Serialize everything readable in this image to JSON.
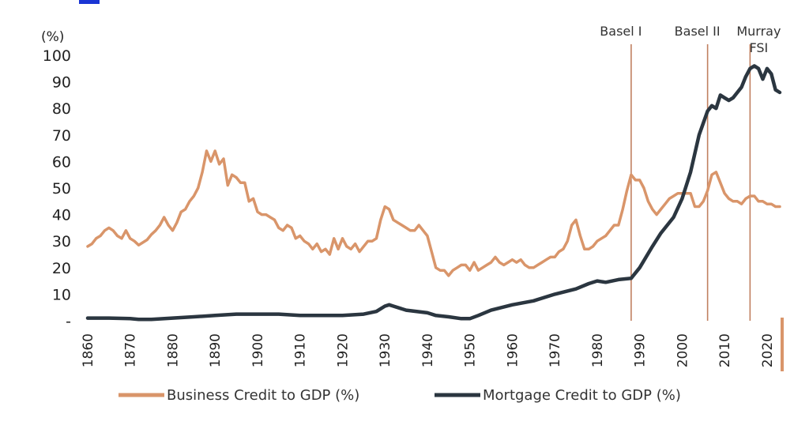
{
  "chart_data": {
    "type": "line",
    "title": "",
    "ylabel_unit": "(%)",
    "xlabel": "",
    "xlim": [
      1860,
      2023
    ],
    "ylim": [
      0,
      100
    ],
    "y_ticks": [
      {
        "value": 0,
        "label": "-"
      },
      {
        "value": 10,
        "label": "10"
      },
      {
        "value": 20,
        "label": "20"
      },
      {
        "value": 30,
        "label": "30"
      },
      {
        "value": 40,
        "label": "40"
      },
      {
        "value": 50,
        "label": "50"
      },
      {
        "value": 60,
        "label": "60"
      },
      {
        "value": 70,
        "label": "70"
      },
      {
        "value": 80,
        "label": "80"
      },
      {
        "value": 90,
        "label": "90"
      },
      {
        "value": 100,
        "label": "100"
      }
    ],
    "x_ticks": [
      {
        "value": 1860,
        "label": "1860"
      },
      {
        "value": 1870,
        "label": "1870"
      },
      {
        "value": 1880,
        "label": "1880"
      },
      {
        "value": 1890,
        "label": "1890"
      },
      {
        "value": 1900,
        "label": "1900"
      },
      {
        "value": 1910,
        "label": "1910"
      },
      {
        "value": 1920,
        "label": "1920"
      },
      {
        "value": 1930,
        "label": "1930"
      },
      {
        "value": 1940,
        "label": "1940"
      },
      {
        "value": 1950,
        "label": "1950"
      },
      {
        "value": 1960,
        "label": "1960"
      },
      {
        "value": 1970,
        "label": "1970"
      },
      {
        "value": 1980,
        "label": "1980"
      },
      {
        "value": 1990,
        "label": "1990"
      },
      {
        "value": 2000,
        "label": "2000"
      },
      {
        "value": 2010,
        "label": "2010"
      },
      {
        "value": 2020,
        "label": "2020"
      }
    ],
    "annotations": [
      {
        "name": "basel-1",
        "lines": [
          "Basel I"
        ],
        "x": 1988
      },
      {
        "name": "basel-2",
        "lines": [
          "Basel II"
        ],
        "x": 2006
      },
      {
        "name": "murray-fsi",
        "lines": [
          "Murray",
          "FSI"
        ],
        "x": 2016
      }
    ],
    "series": [
      {
        "name": "Business Credit to GDP (%)",
        "color": "#D9956A",
        "points": [
          [
            1860,
            28
          ],
          [
            1861,
            29
          ],
          [
            1862,
            31
          ],
          [
            1863,
            32
          ],
          [
            1864,
            34
          ],
          [
            1865,
            35
          ],
          [
            1866,
            34
          ],
          [
            1867,
            32
          ],
          [
            1868,
            31
          ],
          [
            1869,
            34
          ],
          [
            1870,
            31
          ],
          [
            1871,
            30
          ],
          [
            1872,
            28.5
          ],
          [
            1873,
            29.5
          ],
          [
            1874,
            30.5
          ],
          [
            1875,
            32.5
          ],
          [
            1876,
            34
          ],
          [
            1877,
            36
          ],
          [
            1878,
            39
          ],
          [
            1879,
            36
          ],
          [
            1880,
            34
          ],
          [
            1881,
            37
          ],
          [
            1882,
            41
          ],
          [
            1883,
            42
          ],
          [
            1884,
            45
          ],
          [
            1885,
            47
          ],
          [
            1886,
            50
          ],
          [
            1887,
            56
          ],
          [
            1888,
            64
          ],
          [
            1889,
            60
          ],
          [
            1890,
            64
          ],
          [
            1891,
            59
          ],
          [
            1892,
            61
          ],
          [
            1893,
            51
          ],
          [
            1894,
            55
          ],
          [
            1895,
            54
          ],
          [
            1896,
            52
          ],
          [
            1897,
            52
          ],
          [
            1898,
            45
          ],
          [
            1899,
            46
          ],
          [
            1900,
            41
          ],
          [
            1901,
            40
          ],
          [
            1902,
            40
          ],
          [
            1903,
            39
          ],
          [
            1904,
            38
          ],
          [
            1905,
            35
          ],
          [
            1906,
            34
          ],
          [
            1907,
            36
          ],
          [
            1908,
            35
          ],
          [
            1909,
            31
          ],
          [
            1910,
            32
          ],
          [
            1911,
            30
          ],
          [
            1912,
            29
          ],
          [
            1913,
            27
          ],
          [
            1914,
            29
          ],
          [
            1915,
            26
          ],
          [
            1916,
            27
          ],
          [
            1917,
            25
          ],
          [
            1918,
            31
          ],
          [
            1919,
            27
          ],
          [
            1920,
            31
          ],
          [
            1921,
            28
          ],
          [
            1922,
            27
          ],
          [
            1923,
            29
          ],
          [
            1924,
            26
          ],
          [
            1925,
            28
          ],
          [
            1926,
            30
          ],
          [
            1927,
            30
          ],
          [
            1928,
            31
          ],
          [
            1929,
            38
          ],
          [
            1930,
            43
          ],
          [
            1931,
            42
          ],
          [
            1932,
            38
          ],
          [
            1933,
            37
          ],
          [
            1934,
            36
          ],
          [
            1935,
            35
          ],
          [
            1936,
            34
          ],
          [
            1937,
            34
          ],
          [
            1938,
            36
          ],
          [
            1939,
            34
          ],
          [
            1940,
            32
          ],
          [
            1941,
            26
          ],
          [
            1942,
            20
          ],
          [
            1943,
            19
          ],
          [
            1944,
            19
          ],
          [
            1945,
            17
          ],
          [
            1946,
            19
          ],
          [
            1947,
            20
          ],
          [
            1948,
            21
          ],
          [
            1949,
            21
          ],
          [
            1950,
            19
          ],
          [
            1951,
            22
          ],
          [
            1952,
            19
          ],
          [
            1953,
            20
          ],
          [
            1954,
            21
          ],
          [
            1955,
            22
          ],
          [
            1956,
            24
          ],
          [
            1957,
            22
          ],
          [
            1958,
            21
          ],
          [
            1959,
            22
          ],
          [
            1960,
            23
          ],
          [
            1961,
            22
          ],
          [
            1962,
            23
          ],
          [
            1963,
            21
          ],
          [
            1964,
            20
          ],
          [
            1965,
            20
          ],
          [
            1966,
            21
          ],
          [
            1967,
            22
          ],
          [
            1968,
            23
          ],
          [
            1969,
            24
          ],
          [
            1970,
            24
          ],
          [
            1971,
            26
          ],
          [
            1972,
            27
          ],
          [
            1973,
            30
          ],
          [
            1974,
            36
          ],
          [
            1975,
            38
          ],
          [
            1976,
            32
          ],
          [
            1977,
            27
          ],
          [
            1978,
            27
          ],
          [
            1979,
            28
          ],
          [
            1980,
            30
          ],
          [
            1981,
            31
          ],
          [
            1982,
            32
          ],
          [
            1983,
            34
          ],
          [
            1984,
            36
          ],
          [
            1985,
            36
          ],
          [
            1986,
            42
          ],
          [
            1987,
            49
          ],
          [
            1988,
            55
          ],
          [
            1989,
            53
          ],
          [
            1990,
            53
          ],
          [
            1991,
            50
          ],
          [
            1992,
            45
          ],
          [
            1993,
            42
          ],
          [
            1994,
            40
          ],
          [
            1995,
            42
          ],
          [
            1996,
            44
          ],
          [
            1997,
            46
          ],
          [
            1998,
            47
          ],
          [
            1999,
            48
          ],
          [
            2000,
            48
          ],
          [
            2001,
            48
          ],
          [
            2002,
            48
          ],
          [
            2003,
            43
          ],
          [
            2004,
            43
          ],
          [
            2005,
            45
          ],
          [
            2006,
            49
          ],
          [
            2007,
            55
          ],
          [
            2008,
            56
          ],
          [
            2009,
            52
          ],
          [
            2010,
            48
          ],
          [
            2011,
            46
          ],
          [
            2012,
            45
          ],
          [
            2013,
            45
          ],
          [
            2014,
            44
          ],
          [
            2015,
            46
          ],
          [
            2016,
            47
          ],
          [
            2017,
            47
          ],
          [
            2018,
            45
          ],
          [
            2019,
            45
          ],
          [
            2020,
            44
          ],
          [
            2021,
            44
          ],
          [
            2022,
            43
          ],
          [
            2023,
            43
          ]
        ]
      },
      {
        "name": "Mortgage Credit to GDP (%)",
        "color": "#2B3640",
        "points": [
          [
            1860,
            1
          ],
          [
            1865,
            1
          ],
          [
            1870,
            0.8
          ],
          [
            1872,
            0.5
          ],
          [
            1875,
            0.5
          ],
          [
            1880,
            1
          ],
          [
            1885,
            1.5
          ],
          [
            1890,
            2
          ],
          [
            1895,
            2.5
          ],
          [
            1900,
            2.5
          ],
          [
            1905,
            2.5
          ],
          [
            1910,
            2
          ],
          [
            1915,
            2
          ],
          [
            1920,
            2
          ],
          [
            1925,
            2.5
          ],
          [
            1928,
            3.5
          ],
          [
            1930,
            5.5
          ],
          [
            1931,
            6
          ],
          [
            1932,
            5.5
          ],
          [
            1935,
            4
          ],
          [
            1940,
            3
          ],
          [
            1942,
            2
          ],
          [
            1945,
            1.5
          ],
          [
            1948,
            0.8
          ],
          [
            1950,
            0.8
          ],
          [
            1952,
            2
          ],
          [
            1955,
            4
          ],
          [
            1960,
            6
          ],
          [
            1965,
            7.5
          ],
          [
            1970,
            10
          ],
          [
            1975,
            12
          ],
          [
            1978,
            14
          ],
          [
            1980,
            15
          ],
          [
            1982,
            14.5
          ],
          [
            1985,
            15.5
          ],
          [
            1988,
            16
          ],
          [
            1990,
            20
          ],
          [
            1993,
            28
          ],
          [
            1995,
            33
          ],
          [
            1998,
            39
          ],
          [
            2000,
            46
          ],
          [
            2002,
            56
          ],
          [
            2004,
            70
          ],
          [
            2006,
            79
          ],
          [
            2007,
            81
          ],
          [
            2008,
            80
          ],
          [
            2009,
            85
          ],
          [
            2010,
            84
          ],
          [
            2011,
            83
          ],
          [
            2012,
            84
          ],
          [
            2013,
            86
          ],
          [
            2014,
            88
          ],
          [
            2015,
            92
          ],
          [
            2016,
            95
          ],
          [
            2017,
            96
          ],
          [
            2018,
            95
          ],
          [
            2019,
            91
          ],
          [
            2020,
            95
          ],
          [
            2021,
            93
          ],
          [
            2022,
            87
          ],
          [
            2023,
            86
          ]
        ]
      }
    ]
  }
}
